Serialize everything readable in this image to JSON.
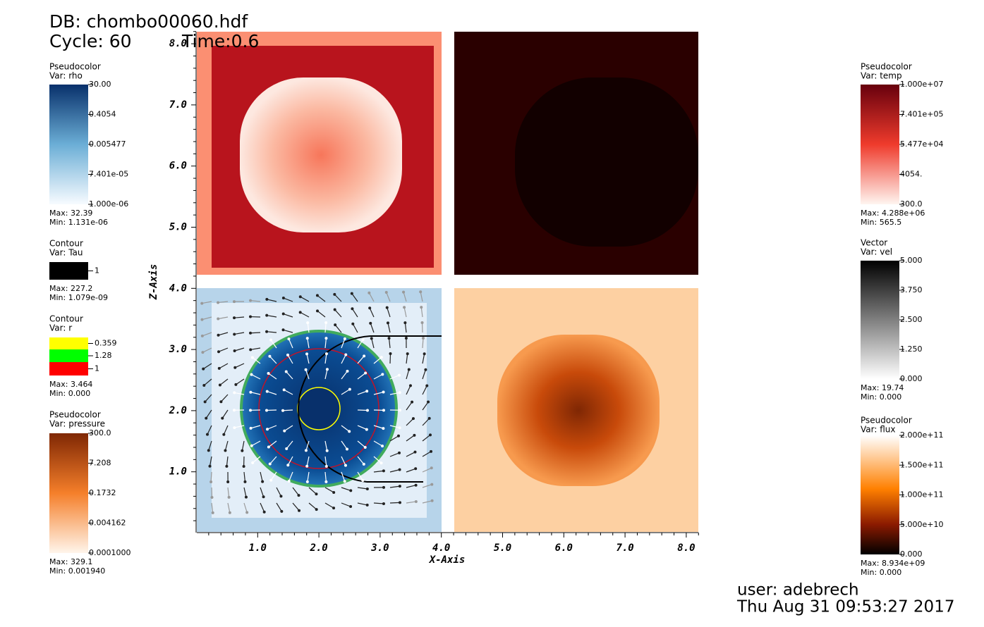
{
  "header": {
    "db": "DB: chombo00060.hdf",
    "cycle": "Cycle: 60",
    "time": "Time:0.6"
  },
  "axes": {
    "x_label": "X-Axis",
    "y_label": "Z-Axis",
    "x_ticks": [
      "1.0",
      "2.0",
      "3.0",
      "4.0",
      "5.0",
      "6.0",
      "7.0",
      "8.0"
    ],
    "y_ticks": [
      "1.0",
      "2.0",
      "3.0",
      "4.0",
      "5.0",
      "6.0",
      "7.0",
      "8.0"
    ]
  },
  "legends": [
    {
      "title": "Pseudocolor",
      "var": "Var: rho",
      "labels": [
        "30.00",
        "0.4054",
        "0.005477",
        "7.401e-05",
        "1.000e-06"
      ],
      "max": "Max:  32.39",
      "min": "Min:  1.131e-06"
    },
    {
      "title": "Contour",
      "var": "Var: Tau",
      "labels": [
        "1"
      ],
      "max": "Max:  227.2",
      "min": "Min:  1.079e-09"
    },
    {
      "title": "Contour",
      "var": "Var: r",
      "labels": [
        "0.359",
        "1.28",
        "1"
      ],
      "max": "Max:  3.464",
      "min": "Min:  0.000"
    },
    {
      "title": "Pseudocolor",
      "var": "Var: pressure",
      "labels": [
        "300.0",
        "7.208",
        "0.1732",
        "0.004162",
        "0.0001000"
      ],
      "max": "Max:  329.1",
      "min": "Min:  0.001940"
    },
    {
      "title": "Pseudocolor",
      "var": "Var: temp",
      "labels": [
        "1.000e+07",
        "7.401e+05",
        "5.477e+04",
        "4054.",
        "300.0"
      ],
      "max": "Max:  4.288e+06",
      "min": "Min:  565.5"
    },
    {
      "title": "Vector",
      "var": "Var: vel",
      "labels": [
        "5.000",
        "3.750",
        "2.500",
        "1.250",
        "0.000"
      ],
      "max": "Max:  19.74",
      "min": "Min:  0.000"
    },
    {
      "title": "Pseudocolor",
      "var": "Var: flux",
      "labels": [
        "2.000e+11",
        "1.500e+11",
        "1.000e+11",
        "5.000e+10",
        "0.000"
      ],
      "max": "Max:  8.934e+09",
      "min": "Min:  0.000"
    }
  ],
  "footer": {
    "user": "user: adebrech",
    "date": "Thu Aug 31 09:53:27 2017"
  }
}
